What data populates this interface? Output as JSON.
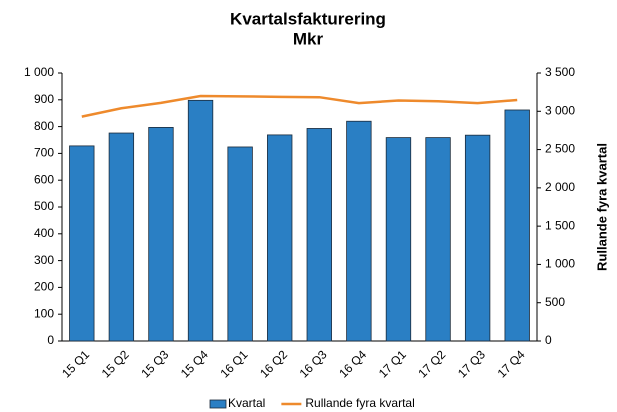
{
  "chart_data": {
    "type": "bar",
    "title": "Kvartalsfakturering",
    "subtitle": "Mkr",
    "y2label": "Rullande fyra kvartal",
    "categories": [
      "15 Q1",
      "15 Q2",
      "15 Q3",
      "15 Q4",
      "16 Q1",
      "16 Q2",
      "16 Q3",
      "16 Q4",
      "17 Q1",
      "17 Q2",
      "17 Q3",
      "17 Q4"
    ],
    "series": [
      {
        "name": "Kvartal",
        "type": "bar",
        "color": "#2a7fc4",
        "values": [
          728,
          776,
          797,
          898,
          724,
          769,
          793,
          820,
          759,
          759,
          768,
          862
        ]
      },
      {
        "name": "Rullande fyra kvartal",
        "type": "line",
        "axis": "y2",
        "color": "#ee8a2c",
        "values": [
          2930,
          3040,
          3110,
          3199,
          3195,
          3188,
          3184,
          3106,
          3141,
          3131,
          3106,
          3148
        ]
      }
    ],
    "ylim": [
      0,
      1000
    ],
    "yticks": [
      0,
      100,
      200,
      300,
      400,
      500,
      600,
      700,
      800,
      900,
      {
        "value": 1000,
        "label": "1 000"
      }
    ],
    "y2lim": [
      0,
      3500
    ],
    "y2ticks": [
      0,
      500,
      {
        "value": 1000,
        "label": "1 000"
      },
      {
        "value": 1500,
        "label": "1 500"
      },
      {
        "value": 2000,
        "label": "2 000"
      },
      {
        "value": 2500,
        "label": "2 500"
      },
      {
        "value": 3000,
        "label": "3 000"
      },
      {
        "value": 3500,
        "label": "3 500"
      }
    ],
    "legend": "bottom"
  }
}
